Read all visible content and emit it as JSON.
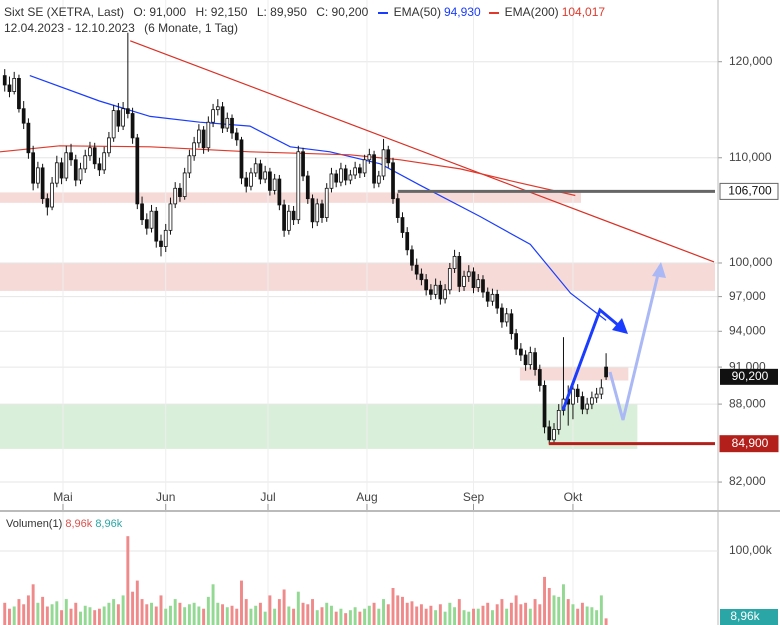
{
  "chart_data": {
    "type": "candlestick",
    "title": "Sixt SE (XETRA, Last)",
    "ohlc_labels": [
      "O: 91,000",
      "H: 92,150",
      "L: 89,950",
      "C: 90,200"
    ],
    "date_range": "12.04.2023 - 12.10.2023",
    "period": "(6 Monate, 1 Tag)",
    "colors": {
      "up": "#ffffff",
      "down": "#111111"
    },
    "log_scale": true,
    "grid": true,
    "xlim": [
      -1,
      150
    ],
    "xticks": [
      {
        "value": 12.3,
        "label": "Mai"
      },
      {
        "value": 34,
        "label": "Jun"
      },
      {
        "value": 55.6,
        "label": "Jul"
      },
      {
        "value": 76.5,
        "label": "Aug"
      },
      {
        "value": 99,
        "label": "Sep"
      },
      {
        "value": 120,
        "label": "Okt"
      }
    ],
    "ylim": [
      79.95,
      126.9
    ],
    "yticks": [
      {
        "value": 120,
        "label": "120,000"
      },
      {
        "value": 110,
        "label": "110,000"
      },
      {
        "value": 100,
        "label": "100,000"
      },
      {
        "value": 97,
        "label": "97,000"
      },
      {
        "value": 94,
        "label": "94,000"
      },
      {
        "value": 91,
        "label": "91,000"
      },
      {
        "value": 88,
        "label": "88,000"
      },
      {
        "value": 82,
        "label": "82,000"
      }
    ],
    "candles": [
      [
        118.5,
        119.2,
        116.8,
        117.5
      ],
      [
        117.5,
        118.4,
        116.2,
        116.8
      ],
      [
        116.8,
        118.9,
        116.5,
        118.2
      ],
      [
        118.2,
        118.6,
        114.6,
        115.0
      ],
      [
        115.0,
        115.8,
        112.9,
        113.5
      ],
      [
        113.5,
        114.0,
        109.9,
        110.5
      ],
      [
        110.5,
        111.2,
        106.8,
        107.5
      ],
      [
        107.5,
        109.6,
        107.0,
        109.0
      ],
      [
        109.0,
        109.4,
        105.5,
        106.0
      ],
      [
        106.0,
        106.5,
        104.4,
        105.2
      ],
      [
        105.2,
        108.1,
        104.9,
        107.5
      ],
      [
        107.5,
        110.2,
        107.1,
        109.5
      ],
      [
        109.5,
        110.0,
        107.4,
        108.0
      ],
      [
        108.0,
        111.2,
        107.7,
        110.5
      ],
      [
        110.5,
        111.4,
        109.2,
        109.8
      ],
      [
        109.8,
        110.3,
        107.2,
        107.8
      ],
      [
        107.8,
        109.5,
        107.4,
        108.9
      ],
      [
        108.9,
        110.8,
        108.5,
        110.2
      ],
      [
        110.2,
        111.6,
        109.7,
        111.0
      ],
      [
        111.0,
        111.5,
        108.9,
        109.4
      ],
      [
        109.4,
        110.0,
        108.2,
        108.8
      ],
      [
        108.8,
        111.1,
        108.4,
        110.5
      ],
      [
        110.5,
        112.6,
        110.1,
        112.0
      ],
      [
        112.0,
        115.4,
        111.6,
        114.8
      ],
      [
        114.8,
        115.6,
        112.6,
        113.2
      ],
      [
        113.2,
        115.7,
        112.8,
        115.0
      ],
      [
        115.0,
        123.2,
        114.0,
        114.5
      ],
      [
        114.5,
        115.1,
        111.4,
        112.0
      ],
      [
        112.0,
        112.4,
        105.0,
        105.5
      ],
      [
        105.5,
        106.2,
        103.5,
        104.0
      ],
      [
        104.0,
        104.6,
        102.6,
        103.2
      ],
      [
        103.2,
        105.4,
        102.8,
        104.8
      ],
      [
        104.8,
        105.2,
        101.4,
        102.0
      ],
      [
        102.0,
        102.6,
        100.6,
        101.5
      ],
      [
        101.5,
        103.6,
        101.0,
        103.0
      ],
      [
        103.0,
        106.1,
        102.6,
        105.5
      ],
      [
        105.5,
        107.6,
        105.1,
        107.0
      ],
      [
        107.0,
        107.5,
        105.7,
        106.2
      ],
      [
        106.2,
        109.0,
        105.9,
        108.5
      ],
      [
        108.5,
        110.8,
        108.0,
        110.2
      ],
      [
        110.2,
        112.1,
        109.7,
        111.5
      ],
      [
        111.5,
        113.4,
        111.0,
        112.8
      ],
      [
        112.8,
        113.2,
        110.4,
        111.0
      ],
      [
        111.0,
        114.2,
        110.6,
        113.6
      ],
      [
        113.6,
        115.5,
        113.1,
        114.9
      ],
      [
        114.9,
        116.0,
        114.3,
        115.2
      ],
      [
        115.2,
        115.7,
        112.5,
        113.0
      ],
      [
        113.0,
        114.6,
        112.6,
        114.0
      ],
      [
        114.0,
        114.4,
        111.9,
        112.5
      ],
      [
        112.5,
        113.0,
        111.2,
        111.8
      ],
      [
        111.8,
        112.1,
        107.4,
        108.0
      ],
      [
        108.0,
        108.6,
        106.6,
        107.2
      ],
      [
        107.2,
        109.0,
        106.8,
        108.5
      ],
      [
        108.5,
        110.0,
        108.1,
        109.4
      ],
      [
        109.4,
        109.8,
        107.4,
        107.9
      ],
      [
        107.9,
        109.2,
        107.5,
        108.6
      ],
      [
        108.6,
        109.0,
        106.3,
        106.8
      ],
      [
        106.8,
        108.4,
        106.4,
        107.9
      ],
      [
        107.9,
        108.3,
        104.9,
        105.4
      ],
      [
        105.4,
        105.9,
        102.4,
        103.0
      ],
      [
        103.0,
        105.4,
        102.6,
        104.8
      ],
      [
        104.8,
        105.3,
        103.5,
        104.0
      ],
      [
        104.0,
        111.2,
        103.6,
        110.6
      ],
      [
        110.6,
        111.0,
        107.7,
        108.2
      ],
      [
        108.2,
        108.7,
        105.5,
        106.0
      ],
      [
        106.0,
        106.4,
        103.2,
        103.8
      ],
      [
        103.8,
        106.0,
        103.4,
        105.5
      ],
      [
        105.5,
        105.9,
        103.7,
        104.2
      ],
      [
        104.2,
        107.5,
        103.8,
        107.0
      ],
      [
        107.0,
        109.0,
        106.6,
        108.4
      ],
      [
        108.4,
        108.8,
        107.1,
        107.6
      ],
      [
        107.6,
        109.5,
        107.2,
        108.9
      ],
      [
        108.9,
        109.3,
        107.3,
        107.8
      ],
      [
        107.8,
        108.8,
        107.4,
        108.3
      ],
      [
        108.3,
        109.6,
        107.9,
        109.0
      ],
      [
        109.0,
        109.4,
        108.0,
        108.5
      ],
      [
        108.5,
        110.3,
        108.1,
        109.8
      ],
      [
        109.8,
        110.9,
        109.4,
        110.3
      ],
      [
        110.3,
        110.7,
        107.0,
        107.5
      ],
      [
        107.5,
        108.7,
        107.1,
        108.2
      ],
      [
        108.2,
        111.9,
        107.8,
        110.8
      ],
      [
        110.8,
        111.2,
        109.0,
        109.5
      ],
      [
        109.5,
        110.0,
        105.5,
        106.0
      ],
      [
        106.0,
        106.5,
        103.7,
        104.2
      ],
      [
        104.2,
        104.7,
        102.3,
        102.8
      ],
      [
        102.8,
        103.3,
        100.7,
        101.2
      ],
      [
        101.2,
        101.6,
        99.3,
        99.8
      ],
      [
        99.8,
        100.4,
        98.5,
        99.0
      ],
      [
        99.0,
        99.5,
        98.0,
        98.5
      ],
      [
        98.5,
        99.0,
        97.1,
        97.6
      ],
      [
        97.6,
        98.1,
        96.7,
        97.2
      ],
      [
        97.2,
        98.6,
        96.8,
        98.0
      ],
      [
        98.0,
        98.4,
        96.3,
        96.8
      ],
      [
        96.8,
        98.1,
        96.4,
        97.6
      ],
      [
        97.6,
        100.0,
        97.2,
        99.5
      ],
      [
        99.5,
        101.2,
        99.1,
        100.6
      ],
      [
        100.6,
        101.0,
        97.4,
        97.9
      ],
      [
        97.9,
        99.3,
        97.5,
        98.8
      ],
      [
        98.8,
        99.8,
        98.3,
        99.2
      ],
      [
        99.2,
        99.6,
        97.3,
        97.8
      ],
      [
        97.8,
        99.0,
        97.4,
        98.5
      ],
      [
        98.5,
        98.9,
        96.9,
        97.4
      ],
      [
        97.4,
        97.8,
        96.1,
        96.6
      ],
      [
        96.6,
        97.7,
        96.2,
        97.2
      ],
      [
        97.2,
        97.6,
        95.5,
        96.0
      ],
      [
        96.0,
        96.4,
        94.3,
        94.8
      ],
      [
        94.8,
        96.0,
        94.4,
        95.5
      ],
      [
        95.5,
        95.9,
        93.3,
        93.8
      ],
      [
        93.8,
        94.2,
        92.0,
        92.5
      ],
      [
        92.5,
        93.0,
        91.5,
        92.0
      ],
      [
        92.0,
        92.4,
        90.7,
        91.2
      ],
      [
        91.2,
        92.7,
        90.8,
        92.2
      ],
      [
        92.2,
        92.6,
        90.3,
        90.8
      ],
      [
        90.8,
        91.2,
        89.0,
        89.5
      ],
      [
        89.5,
        89.9,
        85.7,
        86.2
      ],
      [
        86.2,
        86.7,
        84.9,
        85.2
      ],
      [
        85.2,
        86.5,
        84.9,
        86.0
      ],
      [
        86.0,
        88.0,
        85.6,
        87.5
      ],
      [
        87.5,
        93.5,
        87.1,
        88.4
      ],
      [
        88.4,
        89.5,
        86.3,
        88.0
      ],
      [
        88.0,
        89.7,
        86.8,
        89.2
      ],
      [
        89.2,
        89.6,
        88.1,
        88.6
      ],
      [
        88.6,
        89.0,
        87.2,
        87.6
      ],
      [
        87.6,
        88.5,
        87.2,
        88.0
      ],
      [
        88.0,
        89.0,
        87.6,
        88.5
      ],
      [
        88.5,
        89.3,
        88.1,
        88.8
      ],
      [
        88.8,
        90.0,
        88.4,
        89.3
      ],
      [
        91.0,
        92.15,
        89.95,
        90.2
      ]
    ],
    "overlays": [
      {
        "name": "EMA(50)",
        "value_label": "94,930",
        "color": "#1a3cff",
        "x": [
          5.3,
          20,
          30.7,
          41.2,
          51.8,
          60.3,
          68.7,
          79.3,
          87.7,
          100.4,
          111,
          119.5,
          127
        ],
        "values": [
          118.5,
          115.8,
          114.2,
          113.6,
          113.2,
          111.1,
          110.6,
          109.4,
          107.3,
          104.3,
          101.7,
          97.3,
          94.93
        ]
      },
      {
        "name": "EMA(200)",
        "value_label": "104,017",
        "color": "#e0392b",
        "x": [
          -1,
          11.6,
          30.7,
          51.8,
          72.9,
          83.5,
          96.2,
          108,
          120.5
        ],
        "values": [
          110.6,
          111.2,
          111.1,
          110.6,
          110.3,
          109.8,
          108.9,
          107.6,
          106.3
        ]
      }
    ],
    "zones": [
      {
        "range": [
          105.6,
          106.6
        ],
        "x": [
          -1,
          121.7
        ],
        "color": "#f3d3d0"
      },
      {
        "range": [
          97.5,
          100.0
        ],
        "x": [
          -1,
          150
        ],
        "color": "#f3d3d0"
      },
      {
        "range": [
          89.9,
          91.0
        ],
        "x": [
          108.8,
          131.7
        ],
        "color": "#f3d3d0"
      },
      {
        "range": [
          84.5,
          88.0
        ],
        "x": [
          -1,
          133.6
        ],
        "color": "#d4ecd2"
      }
    ],
    "trendline": {
      "x": [
        26.5,
        149.8
      ],
      "values": [
        122.3,
        100.1
      ],
      "color": "#d93025"
    },
    "levels": [
      {
        "value": 106.7,
        "label": "106,700",
        "x": [
          83,
          150
        ],
        "color": "#666666"
      },
      {
        "value": 84.9,
        "label": "84,900",
        "x": [
          114.9,
          150
        ],
        "color": "#b3201b"
      }
    ],
    "last_price": {
      "value": 90.2,
      "label": "90,200"
    },
    "volume": {
      "name": "Volumen(1)",
      "legend_values": [
        "8,96k",
        "8,96k"
      ],
      "legend_colors": [
        "#d9534f",
        "#2aa6a6"
      ],
      "colors": {
        "up": "#93d893",
        "down": "#f08a8a"
      },
      "ylim": [
        0,
        148.6
      ],
      "yticks": [
        {
          "value": 100,
          "label": "100,00k"
        }
      ],
      "last": {
        "value": 8.96,
        "label": "8,96k"
      },
      "values": [
        30,
        22,
        25,
        35,
        28,
        40,
        55,
        30,
        38,
        25,
        28,
        32,
        20,
        35,
        22,
        30,
        18,
        26,
        24,
        20,
        22,
        25,
        30,
        35,
        28,
        40,
        120,
        45,
        60,
        35,
        28,
        30,
        25,
        40,
        22,
        26,
        35,
        30,
        24,
        28,
        30,
        25,
        22,
        38,
        55,
        30,
        28,
        24,
        26,
        22,
        60,
        35,
        22,
        26,
        30,
        18,
        40,
        22,
        35,
        48,
        25,
        22,
        45,
        30,
        28,
        35,
        20,
        24,
        30,
        26,
        18,
        22,
        16,
        20,
        24,
        18,
        22,
        26,
        30,
        22,
        35,
        28,
        50,
        40,
        38,
        30,
        32,
        25,
        28,
        22,
        26,
        20,
        28,
        18,
        30,
        24,
        35,
        20,
        18,
        22,
        22,
        26,
        30,
        20,
        28,
        35,
        22,
        30,
        40,
        28,
        30,
        22,
        35,
        28,
        65,
        50,
        40,
        38,
        55,
        35,
        28,
        22,
        30,
        25,
        24,
        20,
        40,
        8.96
      ]
    }
  }
}
